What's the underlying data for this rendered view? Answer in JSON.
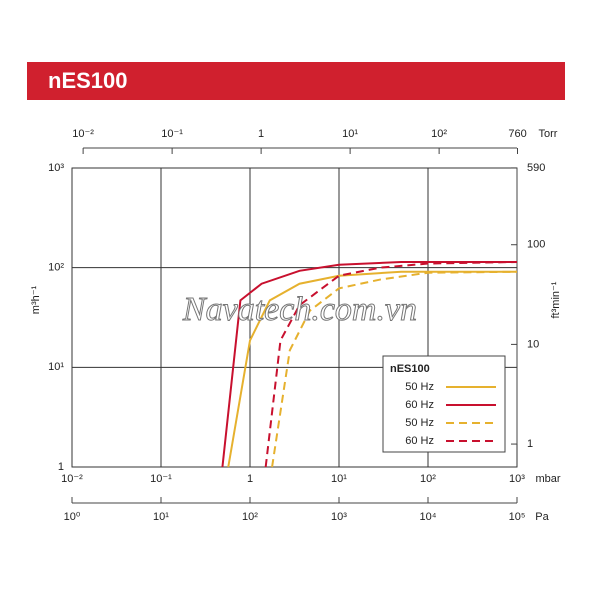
{
  "banner_title": "nES100",
  "watermark": "Navatech.com.vn",
  "chart_data": {
    "type": "line",
    "xscale": "log",
    "yscale": "log",
    "grid": true,
    "xlabel": "mbar",
    "ylabel": "m³h⁻¹",
    "xlim": [
      0.01,
      1000
    ],
    "ylim": [
      1,
      1000
    ],
    "xticks": [
      {
        "value": 0.01,
        "label": "10⁻²"
      },
      {
        "value": 0.1,
        "label": "10⁻¹"
      },
      1,
      {
        "value": 10,
        "label": "10¹"
      },
      {
        "value": 100,
        "label": "10²"
      },
      {
        "value": 1000,
        "label": "10³"
      }
    ],
    "yticks": [
      1,
      {
        "value": 10,
        "label": "10¹"
      },
      {
        "value": 100,
        "label": "10²"
      },
      {
        "value": 1000,
        "label": "10³"
      }
    ],
    "x2label": "Torr",
    "x2lim": [
      0.0075006,
      750.06
    ],
    "x2ticks": [
      {
        "value": 0.01,
        "label": "10⁻²"
      },
      {
        "value": 0.1,
        "label": "10⁻¹"
      },
      1,
      {
        "value": 10,
        "label": "10¹"
      },
      {
        "value": 100,
        "label": "10²"
      },
      760
    ],
    "x3label": "Pa",
    "x3lim": [
      1,
      100000
    ],
    "x3ticks": [
      {
        "value": 1,
        "label": "10⁰"
      },
      {
        "value": 10,
        "label": "10¹"
      },
      {
        "value": 100,
        "label": "10²"
      },
      {
        "value": 1000,
        "label": "10³"
      },
      {
        "value": 10000,
        "label": "10⁴"
      },
      {
        "value": 100000,
        "label": "10⁵"
      }
    ],
    "y2label": "ft³min⁻¹",
    "y2lim": [
      0.5886,
      588.6
    ],
    "y2ticks": [
      1,
      10,
      100,
      590
    ],
    "legend_title": "nES100",
    "series": [
      {
        "name": "50 Hz",
        "color": "#e6b12e",
        "dash": false,
        "x": [
          0.57,
          1,
          1.67,
          3.6,
          10,
          50,
          1000
        ],
        "values": [
          1,
          18.6,
          47,
          69,
          83,
          91,
          91
        ]
      },
      {
        "name": "60 Hz",
        "color": "#c8102e",
        "dash": false,
        "x": [
          0.49,
          0.78,
          1.35,
          3.6,
          10,
          50,
          1000
        ],
        "values": [
          1,
          47,
          69,
          93,
          107,
          114,
          114
        ]
      },
      {
        "name": "50 Hz",
        "color": "#e6b12e",
        "dash": true,
        "x": [
          1.77,
          2.8,
          4.7,
          10,
          29,
          100,
          1000
        ],
        "values": [
          1,
          14.8,
          37,
          62,
          76,
          89,
          91
        ]
      },
      {
        "name": "60 Hz",
        "color": "#c8102e",
        "dash": true,
        "x": [
          1.5,
          2.2,
          3.6,
          10,
          29,
          100,
          1000
        ],
        "values": [
          1,
          18.6,
          42,
          83,
          100,
          110,
          114
        ]
      }
    ]
  }
}
